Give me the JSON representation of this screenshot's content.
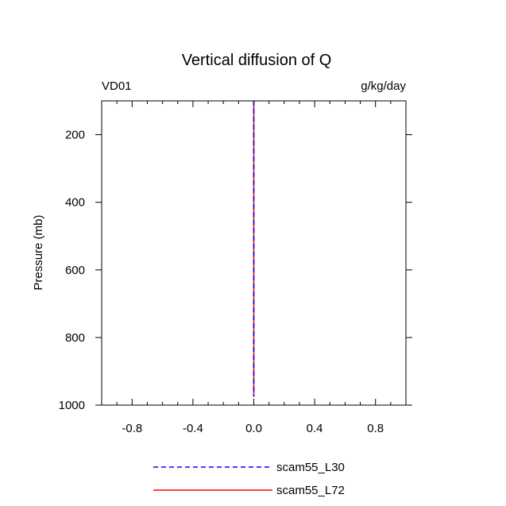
{
  "chart_data": {
    "type": "line",
    "title": "Vertical diffusion of Q",
    "left_string": "VD01",
    "right_string": "g/kg/day",
    "xlabel": "",
    "ylabel": "Pressure (mb)",
    "xlim": [
      -1.0,
      1.0
    ],
    "ylim": [
      100,
      1000
    ],
    "y_reversed": true,
    "x_major_ticks": [
      -0.8,
      -0.4,
      0.0,
      0.4,
      0.8
    ],
    "x_tick_labels": [
      "-0.8",
      "-0.4",
      "0.0",
      "0.4",
      "0.8"
    ],
    "x_minor_step": 0.1,
    "y_major_ticks": [
      200,
      400,
      600,
      800,
      1000
    ],
    "y_tick_labels": [
      "200",
      "400",
      "600",
      "800",
      "1000"
    ],
    "y_minor_step": 100,
    "grid": false,
    "legend_position": "bottom",
    "series": [
      {
        "name": "scam55_L30",
        "color": "#0000ff",
        "dash": "dashed",
        "x": [
          0.0,
          0.0
        ],
        "y": [
          100,
          975
        ]
      },
      {
        "name": "scam55_L72",
        "color": "#ff0000",
        "dash": "solid",
        "x": [
          0.0,
          0.0
        ],
        "y": [
          100,
          975
        ]
      }
    ]
  }
}
